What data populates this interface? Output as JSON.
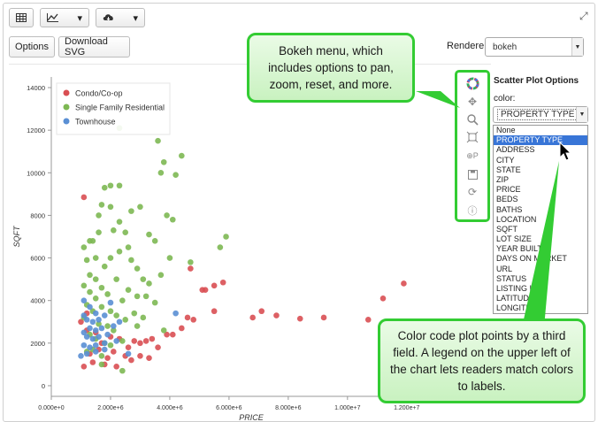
{
  "toolbar": {
    "table_icon": "table-icon",
    "chart_icon": "line-chart-icon",
    "download_icon": "cloud-download-icon",
    "chevron": "▾",
    "expand_icon": "⤢"
  },
  "buttons": {
    "options": "Options",
    "download_svg": "Download SVG"
  },
  "renderer": {
    "label": "Renderer:",
    "value": "bokeh"
  },
  "panel": {
    "title": "Scatter Plot Options",
    "color_label": "color:",
    "color_value": "PROPERTY TYPE",
    "options": [
      "None",
      "PROPERTY TYPE",
      "ADDRESS",
      "CITY",
      "STATE",
      "ZIP",
      "PRICE",
      "BEDS",
      "BATHS",
      "LOCATION",
      "SQFT",
      "LOT SIZE",
      "YEAR BUILT",
      "DAYS ON MARKET",
      "URL",
      "STATUS",
      "LISTING ID",
      "LATITUDE",
      "LONGITUDE"
    ],
    "selected_index": 1
  },
  "callouts": {
    "bokeh_menu": "Bokeh menu, which includes options to pan, zoom, reset, and more.",
    "color_code": "Color code plot points by a third field.  A legend on the upper left of the chart lets readers match colors to labels."
  },
  "colors": {
    "condo": "#d94f53",
    "single_family": "#7db853",
    "townhouse": "#5a8fd4",
    "accent_green": "#33cc33"
  },
  "chart_data": {
    "type": "scatter",
    "xlabel": "PRICE",
    "ylabel": "SQFT",
    "xlim": [
      0,
      13500000
    ],
    "ylim": [
      -500,
      14500
    ],
    "x_ticks": [
      "0.000e+0",
      "2.000e+6",
      "4.000e+6",
      "6.000e+6",
      "8.000e+6",
      "1.000e+7",
      "1.200e+7"
    ],
    "y_ticks": [
      "0",
      "2000",
      "4000",
      "6000",
      "8000",
      "10000",
      "12000",
      "14000"
    ],
    "legend_position": "top-left",
    "series": [
      {
        "name": "Condo/Co-op",
        "color": "#d94f53",
        "points": [
          [
            1100000,
            8850
          ],
          [
            1000000,
            3000
          ],
          [
            1200000,
            2600
          ],
          [
            1500000,
            2500
          ],
          [
            1700000,
            2000
          ],
          [
            2000000,
            2300
          ],
          [
            2300000,
            2200
          ],
          [
            2600000,
            1800
          ],
          [
            2800000,
            2100
          ],
          [
            3000000,
            2000
          ],
          [
            3200000,
            2100
          ],
          [
            3400000,
            2200
          ],
          [
            1300000,
            1500
          ],
          [
            1600000,
            1700
          ],
          [
            1900000,
            1300
          ],
          [
            2100000,
            1600
          ],
          [
            2500000,
            1400
          ],
          [
            2700000,
            1200
          ],
          [
            3000000,
            1400
          ],
          [
            3300000,
            1300
          ],
          [
            3600000,
            1800
          ],
          [
            3900000,
            2400
          ],
          [
            4100000,
            2400
          ],
          [
            4400000,
            2700
          ],
          [
            4600000,
            3200
          ],
          [
            4800000,
            3100
          ],
          [
            4700000,
            5500
          ],
          [
            5100000,
            4500
          ],
          [
            5200000,
            4500
          ],
          [
            5500000,
            4700
          ],
          [
            5800000,
            4850
          ],
          [
            5500000,
            3500
          ],
          [
            6800000,
            3200
          ],
          [
            7100000,
            3500
          ],
          [
            7600000,
            3300
          ],
          [
            8400000,
            3150
          ],
          [
            9200000,
            3200
          ],
          [
            10700000,
            3100
          ],
          [
            11200000,
            4100
          ],
          [
            11900000,
            4800
          ],
          [
            1400000,
            1100
          ],
          [
            2200000,
            900
          ],
          [
            1100000,
            900
          ],
          [
            1800000,
            1000
          ],
          [
            1200000,
            3400
          ]
        ]
      },
      {
        "name": "Single Family Residential",
        "color": "#7db853",
        "points": [
          [
            2300000,
            12100
          ],
          [
            3600000,
            11500
          ],
          [
            3800000,
            10500
          ],
          [
            4400000,
            10800
          ],
          [
            3700000,
            10000
          ],
          [
            4200000,
            9900
          ],
          [
            2000000,
            9400
          ],
          [
            2300000,
            9400
          ],
          [
            2700000,
            8200
          ],
          [
            3000000,
            8400
          ],
          [
            3900000,
            8000
          ],
          [
            4100000,
            7800
          ],
          [
            5900000,
            7000
          ],
          [
            5700000,
            6500
          ],
          [
            4700000,
            5800
          ],
          [
            3300000,
            7100
          ],
          [
            3500000,
            6800
          ],
          [
            4000000,
            6000
          ],
          [
            3700000,
            5200
          ],
          [
            3300000,
            4800
          ],
          [
            2300000,
            6300
          ],
          [
            2000000,
            6000
          ],
          [
            1800000,
            5600
          ],
          [
            1500000,
            6000
          ],
          [
            1400000,
            6800
          ],
          [
            1600000,
            7200
          ],
          [
            1700000,
            8500
          ],
          [
            1600000,
            8000
          ],
          [
            1800000,
            9300
          ],
          [
            2000000,
            8400
          ],
          [
            2100000,
            7300
          ],
          [
            2300000,
            7700
          ],
          [
            2500000,
            7200
          ],
          [
            2600000,
            6500
          ],
          [
            2700000,
            5900
          ],
          [
            2900000,
            5500
          ],
          [
            3100000,
            5000
          ],
          [
            3200000,
            4200
          ],
          [
            2900000,
            4200
          ],
          [
            2600000,
            4500
          ],
          [
            2400000,
            4000
          ],
          [
            2200000,
            5000
          ],
          [
            1900000,
            4300
          ],
          [
            1700000,
            4600
          ],
          [
            1500000,
            5000
          ],
          [
            1300000,
            5200
          ],
          [
            1200000,
            5900
          ],
          [
            1100000,
            6500
          ],
          [
            1300000,
            6800
          ],
          [
            1500000,
            4100
          ],
          [
            1300000,
            4400
          ],
          [
            1100000,
            4700
          ],
          [
            1200000,
            3800
          ],
          [
            1400000,
            3500
          ],
          [
            1700000,
            3700
          ],
          [
            2000000,
            3500
          ],
          [
            2200000,
            3300
          ],
          [
            2500000,
            3100
          ],
          [
            2800000,
            3400
          ],
          [
            3100000,
            3200
          ],
          [
            1600000,
            2900
          ],
          [
            1900000,
            2800
          ],
          [
            2100000,
            2600
          ],
          [
            1300000,
            2400
          ],
          [
            1500000,
            2200
          ],
          [
            1800000,
            2000
          ],
          [
            1400000,
            1700
          ],
          [
            1700000,
            1400
          ],
          [
            1200000,
            1600
          ],
          [
            2400000,
            2100
          ],
          [
            2000000,
            1900
          ],
          [
            2900000,
            2800
          ],
          [
            3500000,
            3900
          ],
          [
            3800000,
            2600
          ],
          [
            1100000,
            3200
          ],
          [
            1700000,
            1000
          ],
          [
            2400000,
            700
          ]
        ]
      },
      {
        "name": "Townhouse",
        "color": "#5a8fd4",
        "points": [
          [
            1100000,
            4000
          ],
          [
            1300000,
            3700
          ],
          [
            1500000,
            3400
          ],
          [
            1100000,
            3300
          ],
          [
            1200000,
            3100
          ],
          [
            1400000,
            3000
          ],
          [
            1600000,
            3100
          ],
          [
            1800000,
            3300
          ],
          [
            1700000,
            2700
          ],
          [
            1500000,
            2600
          ],
          [
            1300000,
            2700
          ],
          [
            1100000,
            2500
          ],
          [
            1200000,
            2300
          ],
          [
            1400000,
            2200
          ],
          [
            1600000,
            2300
          ],
          [
            1800000,
            2000
          ],
          [
            1500000,
            1900
          ],
          [
            1300000,
            1800
          ],
          [
            1100000,
            1900
          ],
          [
            1200000,
            1500
          ],
          [
            1500000,
            1600
          ],
          [
            1800000,
            1700
          ],
          [
            2100000,
            2800
          ],
          [
            2300000,
            3000
          ],
          [
            2000000,
            3900
          ],
          [
            1900000,
            2400
          ],
          [
            2200000,
            2100
          ],
          [
            1000000,
            1400
          ],
          [
            4200000,
            3400
          ],
          [
            2600000,
            1500
          ]
        ]
      }
    ]
  }
}
